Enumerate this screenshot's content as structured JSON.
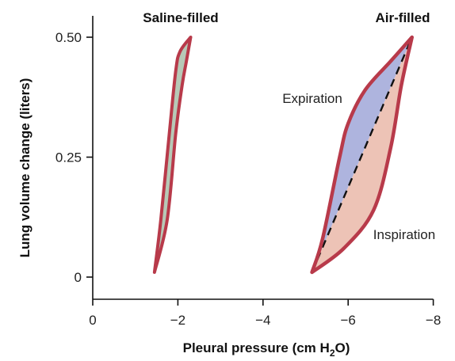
{
  "chart_data": {
    "type": "line",
    "title": "",
    "xlabel_main": "Pleural pressure (cm H",
    "xlabel_sub": "2",
    "xlabel_end": "O)",
    "ylabel": "Lung volume change (liters)",
    "xlim": [
      0,
      -8
    ],
    "ylim": [
      0,
      0.5
    ],
    "x_ticks": [
      0,
      -2,
      -4,
      -6,
      -8
    ],
    "x_tick_labels": [
      "0",
      "−2",
      "−4",
      "−6",
      "−8"
    ],
    "y_ticks": [
      0,
      0.25,
      0.5
    ],
    "y_tick_labels": [
      "0",
      "0.25",
      "0.50"
    ],
    "grid": false,
    "legend": "none",
    "annotations": {
      "saline_filled": "Saline-filled",
      "air_filled": "Air-filled",
      "expiration": "Expiration",
      "inspiration": "Inspiration"
    },
    "colors": {
      "curve": "#b83a4a",
      "saline_fill": "#b7c9b7",
      "expiration_fill": "#aeb4de",
      "inspiration_fill": "#edc3b6",
      "dashed_line": "#111111"
    },
    "series": [
      {
        "loop": "saline",
        "expiration": [
          [
            -1.45,
            0.01
          ],
          [
            -1.6,
            0.12
          ],
          [
            -1.8,
            0.3
          ],
          [
            -1.95,
            0.43
          ],
          [
            -2.05,
            0.47
          ],
          [
            -2.3,
            0.5
          ]
        ],
        "inspiration": [
          [
            -1.45,
            0.01
          ],
          [
            -1.75,
            0.12
          ],
          [
            -1.95,
            0.3
          ],
          [
            -2.1,
            0.4
          ],
          [
            -2.2,
            0.45
          ],
          [
            -2.3,
            0.5
          ]
        ]
      },
      {
        "loop": "air",
        "expiration": [
          [
            -5.15,
            0.01
          ],
          [
            -5.4,
            0.08
          ],
          [
            -5.8,
            0.25
          ],
          [
            -6.0,
            0.32
          ],
          [
            -6.4,
            0.39
          ],
          [
            -7.0,
            0.45
          ],
          [
            -7.5,
            0.5
          ]
        ],
        "inspiration": [
          [
            -5.15,
            0.01
          ],
          [
            -5.9,
            0.06
          ],
          [
            -6.6,
            0.14
          ],
          [
            -7.0,
            0.27
          ],
          [
            -7.25,
            0.4
          ],
          [
            -7.5,
            0.5
          ]
        ],
        "diagonal": [
          [
            -5.15,
            0.01
          ],
          [
            -7.5,
            0.5
          ]
        ]
      }
    ]
  }
}
